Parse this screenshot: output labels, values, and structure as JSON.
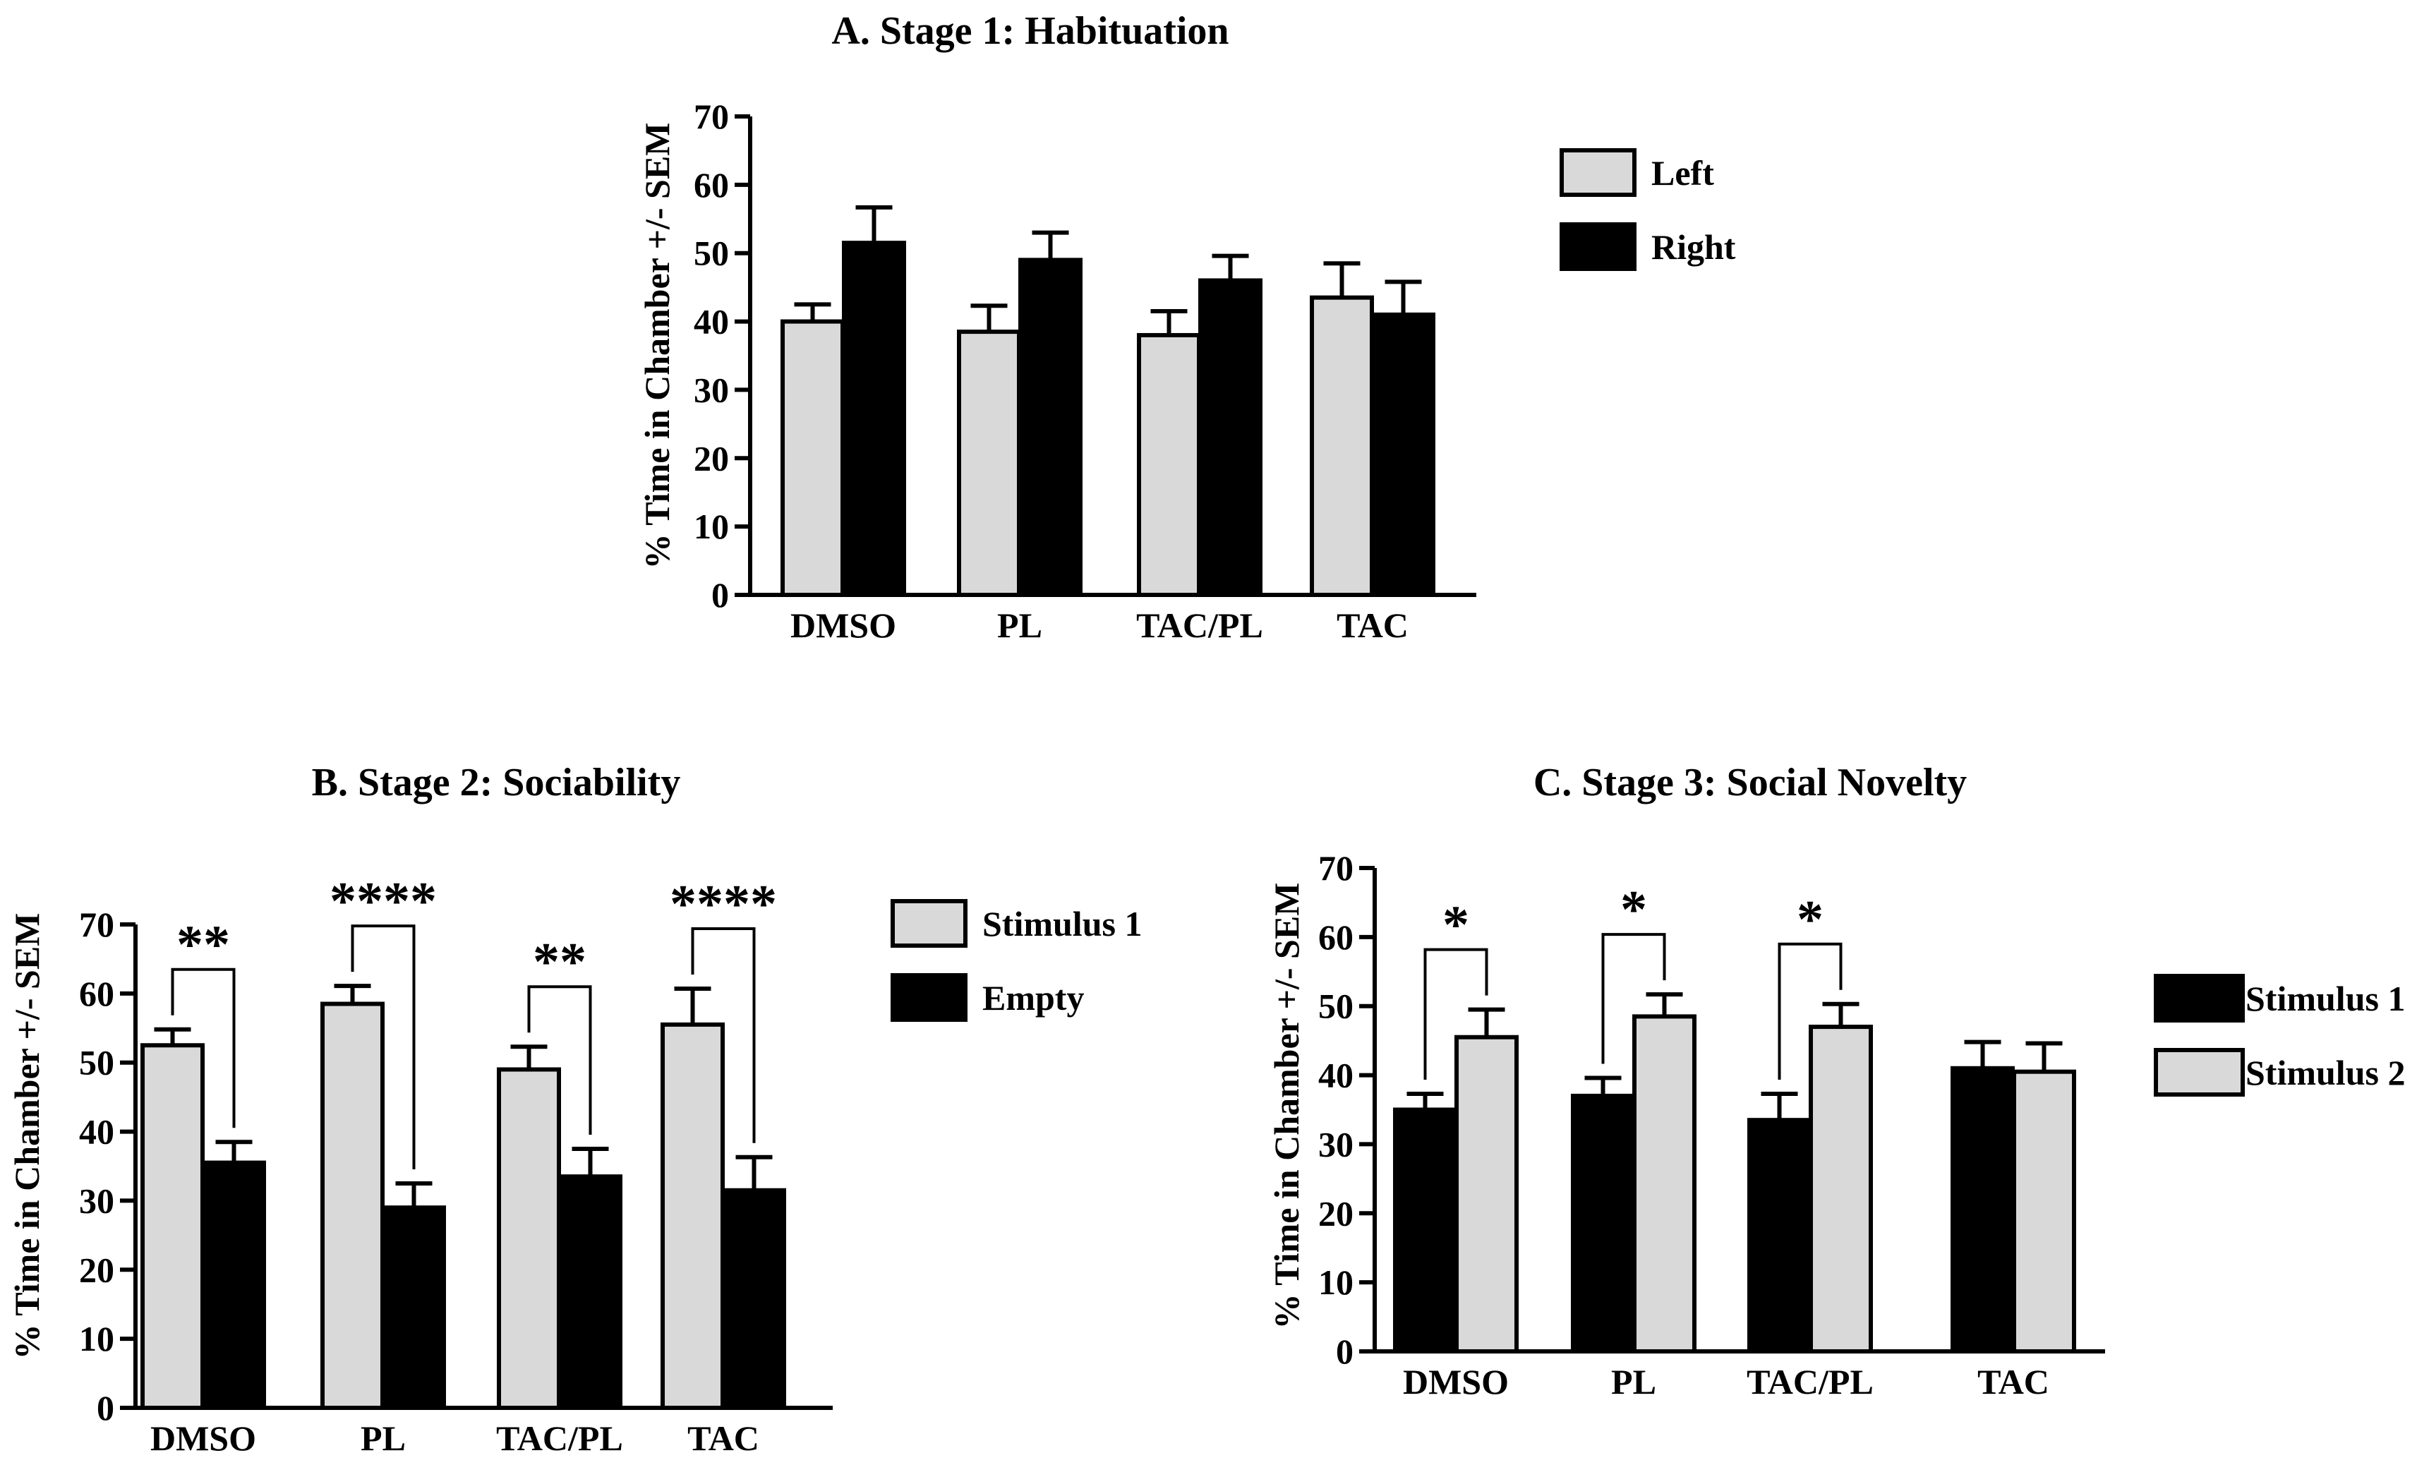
{
  "colors": {
    "light": "#d9d9d9",
    "dark": "#000000",
    "stroke": "#000000"
  },
  "chart_data": [
    {
      "id": "A",
      "type": "bar",
      "title": "A. Stage 1: Habituation",
      "ylabel": "% Time in Chamber +/- SEM",
      "xlabel": "",
      "ylim": [
        0,
        70
      ],
      "yticks": [
        0,
        10,
        20,
        30,
        40,
        50,
        60,
        70
      ],
      "categories": [
        "DMSO",
        "PL",
        "TAC/PL",
        "TAC"
      ],
      "series": [
        {
          "name": "Left",
          "fill": "light",
          "values": [
            40,
            38.5,
            38,
            43.5
          ],
          "errors": [
            2.5,
            3.8,
            3.5,
            5.0
          ]
        },
        {
          "name": "Right",
          "fill": "dark",
          "values": [
            51.5,
            49,
            46,
            41
          ],
          "errors": [
            5.2,
            4.0,
            3.6,
            4.8
          ]
        }
      ],
      "significance": [],
      "legend": "right"
    },
    {
      "id": "B",
      "type": "bar",
      "title": "B. Stage 2: Sociability",
      "ylabel": "% Time in Chamber +/- SEM",
      "xlabel": "",
      "ylim": [
        0,
        70
      ],
      "yticks": [
        0,
        10,
        20,
        30,
        40,
        50,
        60,
        70
      ],
      "categories": [
        "DMSO",
        "PL",
        "TAC/PL",
        "TAC"
      ],
      "series": [
        {
          "name": "Stimulus 1",
          "fill": "light",
          "values": [
            52.5,
            58.5,
            49,
            55.5
          ],
          "errors": [
            2.3,
            2.6,
            3.3,
            5.2
          ]
        },
        {
          "name": "Empty",
          "fill": "dark",
          "values": [
            35.5,
            29,
            33.5,
            31.5
          ],
          "errors": [
            3.0,
            3.5,
            4.0,
            4.8
          ]
        }
      ],
      "significance": [
        "**",
        "****",
        "**",
        "****"
      ],
      "legend": "right"
    },
    {
      "id": "C",
      "type": "bar",
      "title": "C. Stage 3: Social Novelty",
      "ylabel": "% Time in Chamber +/- SEM",
      "xlabel": "",
      "ylim": [
        0,
        70
      ],
      "yticks": [
        0,
        10,
        20,
        30,
        40,
        50,
        60,
        70
      ],
      "categories": [
        "DMSO",
        "PL",
        "TAC/PL",
        "TAC"
      ],
      "series": [
        {
          "name": "Stimulus 1",
          "fill": "dark",
          "values": [
            35,
            37,
            33.5,
            41
          ],
          "errors": [
            2.3,
            2.6,
            3.8,
            3.8
          ]
        },
        {
          "name": "Stimulus 2",
          "fill": "light",
          "values": [
            45.5,
            48.5,
            47,
            40.5
          ],
          "errors": [
            4.0,
            3.2,
            3.3,
            4.1
          ]
        }
      ],
      "significance": [
        "*",
        "*",
        "*",
        ""
      ],
      "legend": "right"
    }
  ]
}
